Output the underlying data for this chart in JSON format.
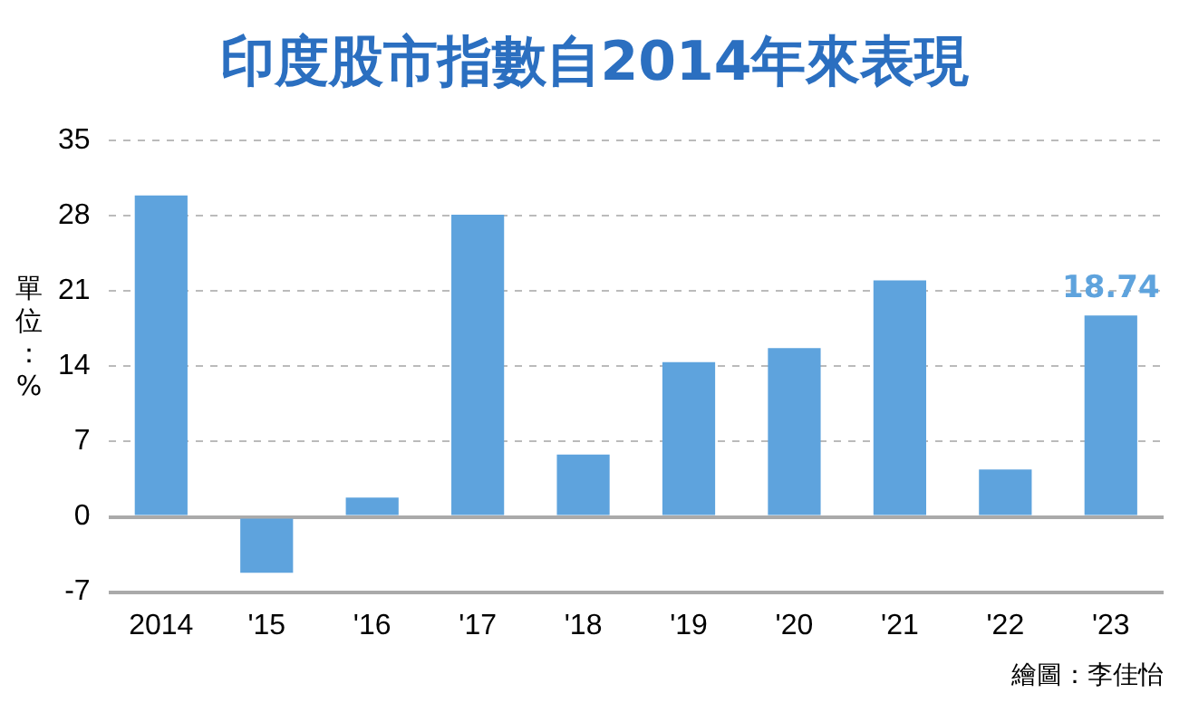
{
  "chart_data": {
    "type": "bar",
    "title": "印度股市指數自2014年來表現",
    "ylabel": "單位：%",
    "categories": [
      "2014",
      "'15",
      "'16",
      "'17",
      "'18",
      "'19",
      "'20",
      "'21",
      "'22",
      "'23"
    ],
    "values": [
      29.9,
      -5.2,
      1.8,
      28.1,
      5.8,
      14.4,
      15.7,
      22.0,
      4.4,
      18.74
    ],
    "value_labels": [
      null,
      null,
      null,
      null,
      null,
      null,
      null,
      null,
      null,
      "18.74"
    ],
    "color": "#5ea3dd",
    "ylim": [
      -7,
      35
    ],
    "yticks": [
      -7,
      0,
      7,
      14,
      21,
      28,
      35
    ],
    "grid": "y",
    "annotations": [
      "繪圖：李佳怡"
    ]
  }
}
